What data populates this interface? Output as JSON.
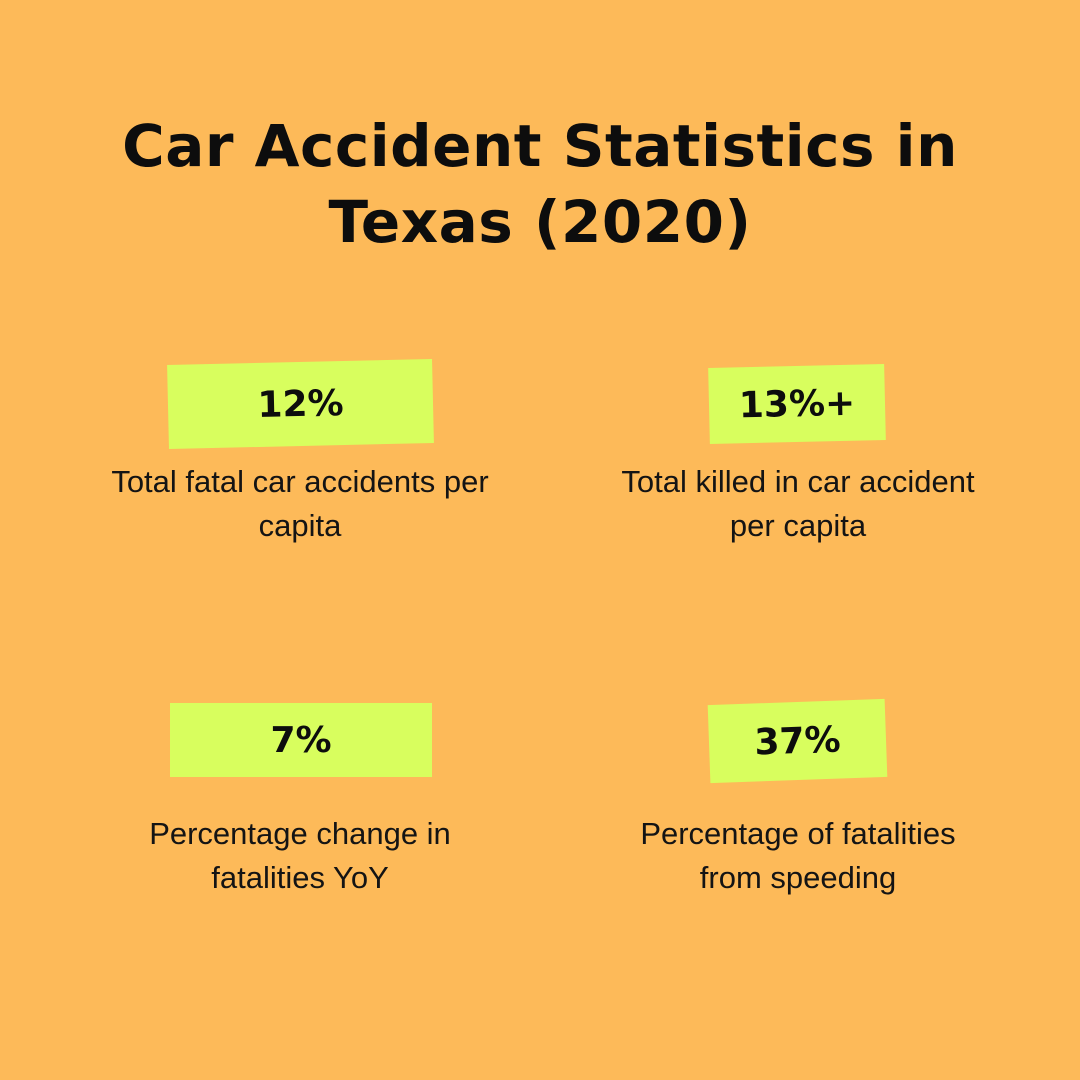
{
  "title": {
    "line1": "Car Accident Statistics in",
    "line2": "Texas (2020)"
  },
  "colors": {
    "background": "#FDBA59",
    "badge": "#D8FE5E",
    "text": "#111111"
  },
  "stats": [
    {
      "value": "12%",
      "description_line1": "Total fatal car accidents per",
      "description_line2": "capita"
    },
    {
      "value": "13%+",
      "description_line1": "Total killed in car accident",
      "description_line2": "per capita"
    },
    {
      "value": "7%",
      "description_line1": "Percentage change in",
      "description_line2": "fatalities YoY"
    },
    {
      "value": "37%",
      "description_line1": "Percentage of fatalities",
      "description_line2": "from speeding"
    }
  ]
}
